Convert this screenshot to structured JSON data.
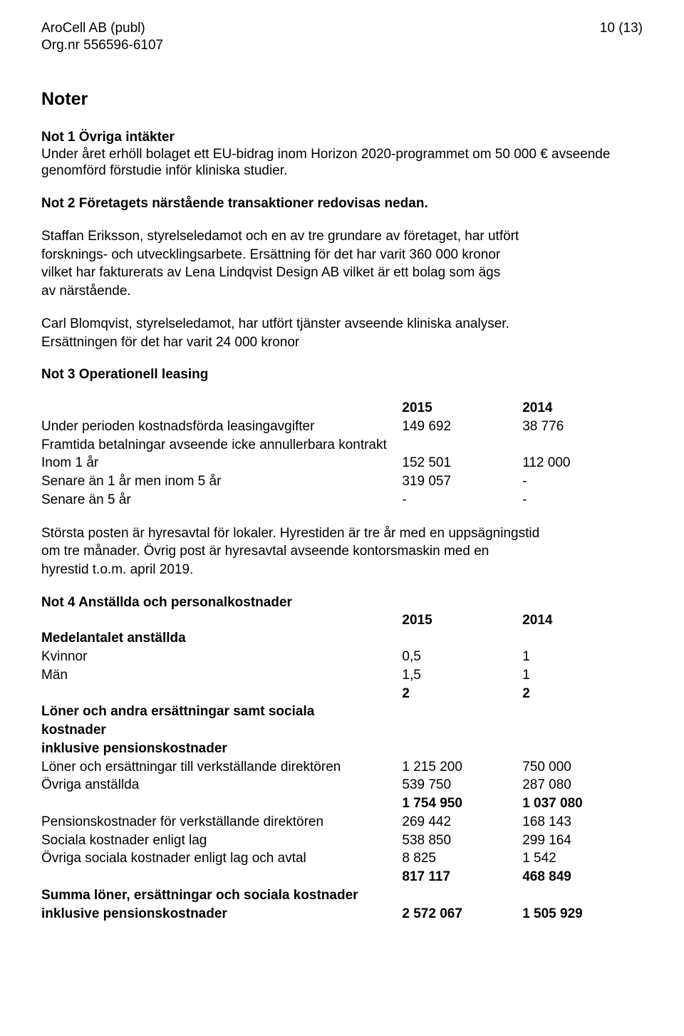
{
  "header": {
    "company": "AroCell AB (publ)",
    "orgnr": "Org.nr 556596-6107",
    "page_num": "10 (13)"
  },
  "noter_heading": "Noter",
  "not1": {
    "title": "Not 1 Övriga intäkter",
    "text": "Under året erhöll bolaget ett EU-bidrag inom Horizon 2020-programmet om 50 000 € avseende genomförd förstudie inför kliniska studier."
  },
  "not2": {
    "title": "Not 2 Företagets närstående transaktioner redovisas nedan.",
    "p1a": "Staffan Eriksson, styrelseledamot och en av tre grundare av företaget, har utfört",
    "p1b": "forsknings- och utvecklingsarbete. Ersättning för det har varit 360 000 kronor",
    "p1c": "vilket har fakturerats av Lena Lindqvist Design AB vilket är ett bolag som ägs",
    "p1d": "av närstående.",
    "p2a": "Carl Blomqvist, styrelseledamot, har utfört tjänster avseende kliniska analyser.",
    "p2b": "Ersättningen för det har varit 24 000 kronor"
  },
  "not3": {
    "title": "Not 3 Operationell leasing",
    "year1": "2015",
    "year2": "2014",
    "row1_label": "Under perioden kostnadsförda leasingavgifter",
    "row1_v1": "149 692",
    "row1_v2": "38 776",
    "framtida": "Framtida betalningar avseende icke annullerbara kontrakt",
    "inom1_label": "Inom 1 år",
    "inom1_v1": "152 501",
    "inom1_v2": "112 000",
    "senare15_label": "Senare än 1 år men inom 5 år",
    "senare15_v1": "319 057",
    "senare15_v2": "-",
    "senare5_label": "Senare än 5 år",
    "senare5_v1": "-",
    "senare5_v2": "-",
    "postnote_a": "Största posten är hyresavtal för lokaler. Hyrestiden är tre år med en uppsägningstid",
    "postnote_b": "om tre månader. Övrig post är hyresavtal avseende kontorsmaskin med en",
    "postnote_c": "hyrestid t.o.m. april 2019."
  },
  "not4": {
    "title": "Not 4 Anställda och personalkostnader",
    "year1": "2015",
    "year2": "2014",
    "medel_heading": "Medelantalet anställda",
    "kvinnor_label": "Kvinnor",
    "kvinnor_v1": "0,5",
    "kvinnor_v2": "1",
    "man_label": "Män",
    "man_v1": "1,5",
    "man_v2": "1",
    "tot_med_v1": "2",
    "tot_med_v2": "2",
    "loner_heading1": "Löner och andra ersättningar samt sociala",
    "loner_heading2": "kostnader",
    "loner_heading3": "inklusive pensionskostnader",
    "vd_label": "Löner och ersättningar till verkställande direktören",
    "vd_v1": "1 215 200",
    "vd_v2": "750 000",
    "ovriga_label": "Övriga anställda",
    "ovriga_v1": "539 750",
    "ovriga_v2": "287 080",
    "sum1_v1": "1 754 950",
    "sum1_v2": "1 037 080",
    "pens_label": "Pensionskostnader för verkställande direktören",
    "pens_v1": "269 442",
    "pens_v2": "168 143",
    "soc_label": "Sociala kostnader enligt lag",
    "soc_v1": "538 850",
    "soc_v2": "299 164",
    "osoc_label": "Övriga sociala kostnader enligt lag och avtal",
    "osoc_v1": "8 825",
    "osoc_v2": "1 542",
    "sum2_v1": "817 117",
    "sum2_v2": "468 849",
    "summa_heading1": "Summa löner, ersättningar och sociala kostnader",
    "summa_heading2": "inklusive pensionskostnader",
    "summa_v1": "2 572 067",
    "summa_v2": "1 505 929"
  }
}
